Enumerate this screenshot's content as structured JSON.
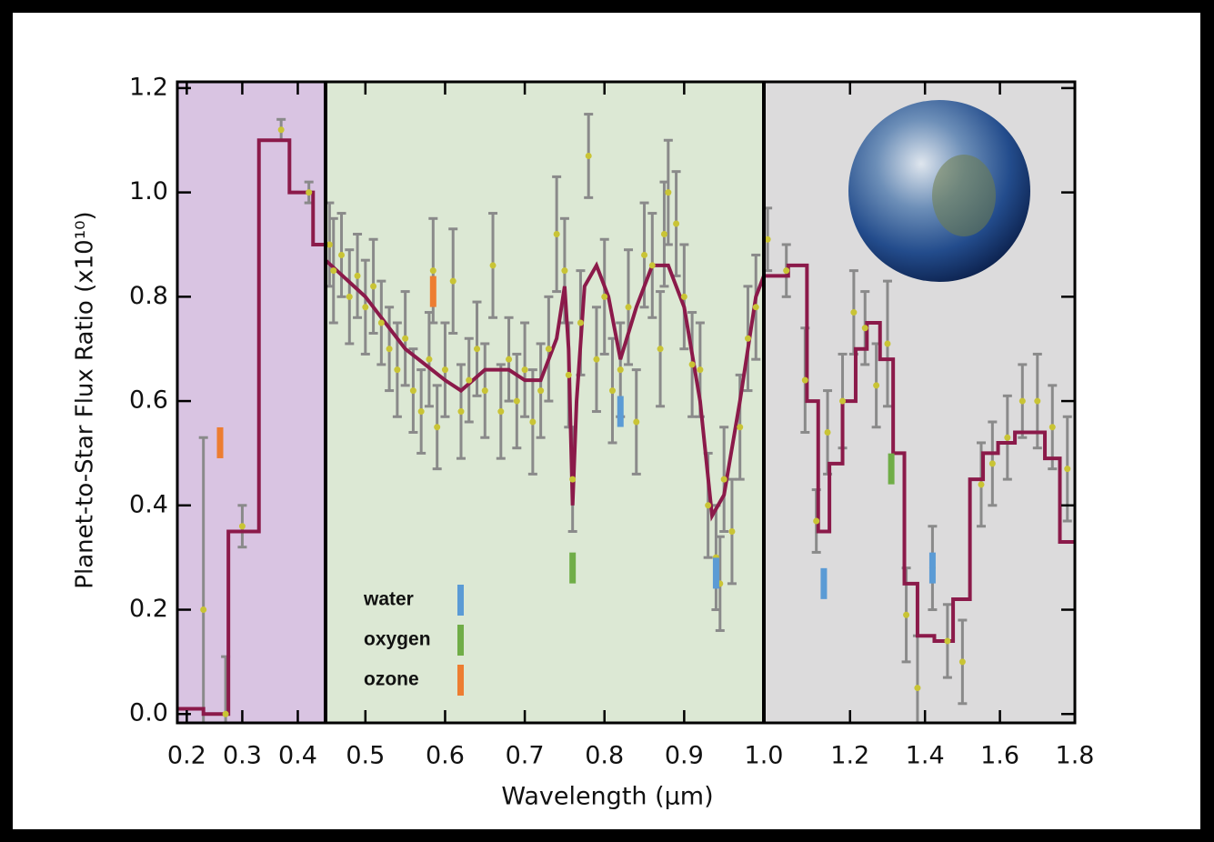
{
  "chart_data": {
    "type": "multi-panel",
    "ylabel": "Planet-to-Star Flux Ratio (x10¹⁰)",
    "xlabel": "Wavelength (μm)",
    "ylim": [
      -0.017,
      1.212
    ],
    "yticks": [
      {
        "value": 0,
        "label": "0.0"
      },
      0.2,
      0.4,
      0.6,
      0.8,
      {
        "value": 1,
        "label": "1.0"
      },
      1.2
    ],
    "model_color": "#8b1a4a",
    "point_color": "#c9c435",
    "error_color": "#8a8a8a",
    "panels": [
      {
        "xlim": [
          0.183,
          0.45
        ],
        "xticks": [
          0.2,
          0.3,
          0.4
        ],
        "background": "#d9c4e2",
        "style": "step",
        "model": {
          "x": [
            0.21,
            0.25,
            0.3,
            0.36,
            0.41,
            0.445
          ],
          "values": [
            0.01,
            0.0,
            0.35,
            1.1,
            1.0,
            0.9
          ]
        },
        "observations": {
          "x": [
            0.23,
            0.27,
            0.3,
            0.37,
            0.42
          ],
          "values": [
            0.2,
            0.0,
            0.36,
            1.12,
            1.0
          ],
          "errors": [
            0.33,
            0.11,
            0.04,
            0.02,
            0.02
          ]
        }
      },
      {
        "xlim": [
          0.45,
          1.0
        ],
        "xticks": [
          0.5,
          0.6,
          0.7,
          0.8,
          0.9,
          {
            "value": 1,
            "label": "1.0"
          }
        ],
        "background": "#dce8d4",
        "style": "line",
        "model": {
          "x": [
            0.45,
            0.5,
            0.55,
            0.6,
            0.62,
            0.65,
            0.68,
            0.7,
            0.72,
            0.74,
            0.75,
            0.755,
            0.76,
            0.765,
            0.775,
            0.79,
            0.805,
            0.82,
            0.84,
            0.86,
            0.88,
            0.9,
            0.92,
            0.935,
            0.95,
            0.97,
            0.99,
            1.0
          ],
          "values": [
            0.87,
            0.8,
            0.7,
            0.64,
            0.62,
            0.66,
            0.66,
            0.64,
            0.64,
            0.72,
            0.82,
            0.7,
            0.4,
            0.6,
            0.82,
            0.86,
            0.8,
            0.68,
            0.78,
            0.86,
            0.86,
            0.78,
            0.6,
            0.38,
            0.42,
            0.6,
            0.8,
            0.84
          ]
        },
        "observations": {
          "x": [
            0.455,
            0.46,
            0.47,
            0.48,
            0.49,
            0.5,
            0.51,
            0.52,
            0.53,
            0.54,
            0.55,
            0.56,
            0.57,
            0.58,
            0.585,
            0.59,
            0.6,
            0.61,
            0.62,
            0.63,
            0.64,
            0.65,
            0.66,
            0.67,
            0.68,
            0.69,
            0.7,
            0.71,
            0.72,
            0.73,
            0.74,
            0.75,
            0.755,
            0.76,
            0.77,
            0.78,
            0.79,
            0.8,
            0.81,
            0.82,
            0.83,
            0.84,
            0.85,
            0.86,
            0.87,
            0.875,
            0.88,
            0.89,
            0.9,
            0.91,
            0.92,
            0.93,
            0.94,
            0.945,
            0.95,
            0.96,
            0.97,
            0.98,
            0.99
          ],
          "values": [
            0.9,
            0.85,
            0.88,
            0.8,
            0.84,
            0.78,
            0.82,
            0.75,
            0.7,
            0.66,
            0.72,
            0.62,
            0.58,
            0.68,
            0.85,
            0.55,
            0.66,
            0.83,
            0.58,
            0.64,
            0.7,
            0.62,
            0.86,
            0.58,
            0.68,
            0.6,
            0.66,
            0.56,
            0.62,
            0.7,
            0.92,
            0.85,
            0.65,
            0.45,
            0.75,
            1.07,
            0.68,
            0.8,
            0.62,
            0.66,
            0.78,
            0.56,
            0.88,
            0.86,
            0.7,
            0.92,
            1.0,
            0.94,
            0.8,
            0.67,
            0.66,
            0.4,
            0.3,
            0.25,
            0.45,
            0.35,
            0.55,
            0.72,
            0.78
          ],
          "errors": [
            0.08,
            0.1,
            0.08,
            0.09,
            0.08,
            0.09,
            0.09,
            0.08,
            0.08,
            0.09,
            0.09,
            0.08,
            0.08,
            0.09,
            0.1,
            0.08,
            0.09,
            0.1,
            0.09,
            0.08,
            0.09,
            0.09,
            0.1,
            0.09,
            0.08,
            0.09,
            0.09,
            0.1,
            0.09,
            0.1,
            0.11,
            0.1,
            0.1,
            0.1,
            0.1,
            0.08,
            0.1,
            0.11,
            0.1,
            0.09,
            0.11,
            0.1,
            0.1,
            0.1,
            0.11,
            0.1,
            0.1,
            0.1,
            0.1,
            0.1,
            0.09,
            0.1,
            0.1,
            0.09,
            0.1,
            0.1,
            0.1,
            0.1,
            0.1
          ]
        }
      },
      {
        "xlim": [
          0.97,
          1.8
        ],
        "xticks": [
          1.2,
          1.4,
          1.6,
          1.8
        ],
        "background": "#dcdbdc",
        "style": "step",
        "model": {
          "x": [
            1.0,
            1.07,
            1.1,
            1.13,
            1.16,
            1.2,
            1.23,
            1.26,
            1.3,
            1.33,
            1.36,
            1.4,
            1.45,
            1.5,
            1.54,
            1.57,
            1.62,
            1.66,
            1.7,
            1.74,
            1.78
          ],
          "values": [
            0.84,
            0.86,
            0.6,
            0.35,
            0.48,
            0.6,
            0.7,
            0.75,
            0.68,
            0.5,
            0.25,
            0.15,
            0.14,
            0.22,
            0.45,
            0.5,
            0.52,
            0.54,
            0.54,
            0.49,
            0.33
          ]
        },
        "observations": {
          "x": [
            0.98,
            1.03,
            1.08,
            1.11,
            1.14,
            1.18,
            1.21,
            1.24,
            1.27,
            1.3,
            1.35,
            1.38,
            1.42,
            1.46,
            1.5,
            1.55,
            1.58,
            1.62,
            1.66,
            1.7,
            1.74,
            1.78
          ],
          "values": [
            0.91,
            0.85,
            0.64,
            0.37,
            0.54,
            0.6,
            0.77,
            0.74,
            0.63,
            0.71,
            0.19,
            0.05,
            0.28,
            0.14,
            0.1,
            0.44,
            0.48,
            0.53,
            0.6,
            0.6,
            0.55,
            0.47
          ],
          "errors": [
            0.06,
            0.05,
            0.1,
            0.06,
            0.08,
            0.09,
            0.08,
            0.07,
            0.08,
            0.12,
            0.09,
            0.1,
            0.08,
            0.07,
            0.08,
            0.08,
            0.08,
            0.08,
            0.07,
            0.09,
            0.08,
            0.1
          ]
        }
      }
    ],
    "features": [
      {
        "name": "water",
        "color": "#5b9bd5",
        "x": [
          0.82,
          0.94,
          1.13,
          1.42
        ],
        "y": [
          0.58,
          0.27,
          0.25,
          0.28
        ]
      },
      {
        "name": "oxygen",
        "color": "#70ad47",
        "x": [
          0.76,
          1.31
        ],
        "y": [
          0.28,
          0.47
        ]
      },
      {
        "name": "ozone",
        "color": "#ed7d31",
        "x": [
          0.26,
          0.585
        ],
        "y": [
          0.52,
          0.81
        ]
      }
    ]
  }
}
